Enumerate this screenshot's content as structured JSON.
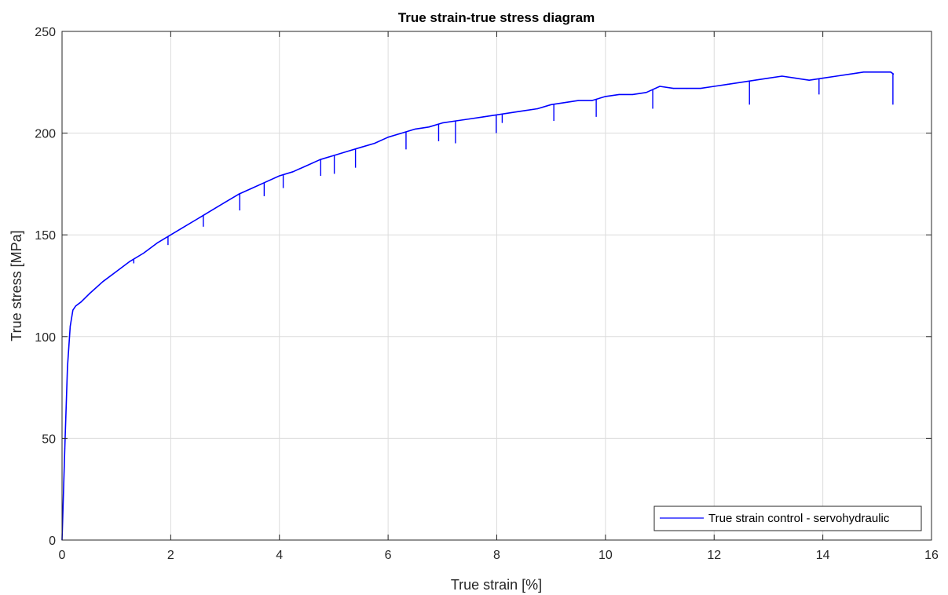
{
  "chart_data": {
    "type": "line",
    "title": "True strain-true stress diagram",
    "xlabel": "True strain [%]",
    "ylabel": "True stress [MPa]",
    "xlim": [
      0,
      16
    ],
    "ylim": [
      0,
      250
    ],
    "xticks": [
      0,
      2,
      4,
      6,
      8,
      10,
      12,
      14,
      16
    ],
    "yticks": [
      0,
      50,
      100,
      150,
      200,
      250
    ],
    "xtick_labels": [
      "0",
      "2",
      "4",
      "6",
      "8",
      "10",
      "12",
      "14",
      "16"
    ],
    "ytick_labels": [
      "0",
      "50",
      "100",
      "150",
      "200",
      "250"
    ],
    "grid": true,
    "legend_position": "bottom-right",
    "series": [
      {
        "name": "True strain control - servohydraulic",
        "color": "#0000ff",
        "x": [
          0,
          0.05,
          0.1,
          0.15,
          0.2,
          0.25,
          0.35,
          0.5,
          0.75,
          1.0,
          1.25,
          1.5,
          1.75,
          2.0,
          2.25,
          2.5,
          2.75,
          3.0,
          3.25,
          3.5,
          3.75,
          4.0,
          4.25,
          4.5,
          4.75,
          5.0,
          5.25,
          5.5,
          5.75,
          6.0,
          6.25,
          6.5,
          6.75,
          7.0,
          7.25,
          7.5,
          7.75,
          8.0,
          8.25,
          8.5,
          8.75,
          9.0,
          9.25,
          9.5,
          9.75,
          10.0,
          10.25,
          10.5,
          10.75,
          11.0,
          11.25,
          11.5,
          11.75,
          12.0,
          12.25,
          12.5,
          12.75,
          13.0,
          13.25,
          13.5,
          13.75,
          14.0,
          14.25,
          14.5,
          14.75,
          15.0,
          15.25,
          15.3
        ],
        "y": [
          0,
          45,
          85,
          105,
          113,
          115,
          117,
          121,
          127,
          132,
          137,
          141,
          146,
          150,
          154,
          158,
          162,
          166,
          170,
          173,
          176,
          179,
          181,
          184,
          187,
          189,
          191,
          193,
          195,
          198,
          200,
          202,
          203,
          205,
          206,
          207,
          208,
          209,
          210,
          211,
          212,
          214,
          215,
          216,
          216,
          218,
          219,
          219,
          220,
          223,
          222,
          222,
          222,
          223,
          224,
          225,
          226,
          227,
          228,
          227,
          226,
          227,
          228,
          229,
          230,
          230,
          230,
          229
        ]
      }
    ],
    "dips": [
      {
        "x": 1.32,
        "y": 136
      },
      {
        "x": 1.95,
        "y": 145
      },
      {
        "x": 2.6,
        "y": 154
      },
      {
        "x": 3.27,
        "y": 162
      },
      {
        "x": 3.72,
        "y": 169
      },
      {
        "x": 4.07,
        "y": 173
      },
      {
        "x": 4.76,
        "y": 179
      },
      {
        "x": 5.01,
        "y": 180
      },
      {
        "x": 5.4,
        "y": 183
      },
      {
        "x": 6.33,
        "y": 192
      },
      {
        "x": 6.93,
        "y": 196
      },
      {
        "x": 7.24,
        "y": 195
      },
      {
        "x": 7.99,
        "y": 200
      },
      {
        "x": 8.1,
        "y": 205
      },
      {
        "x": 9.05,
        "y": 206
      },
      {
        "x": 9.83,
        "y": 208
      },
      {
        "x": 10.87,
        "y": 212
      },
      {
        "x": 12.65,
        "y": 214
      },
      {
        "x": 13.93,
        "y": 219
      },
      {
        "x": 15.29,
        "y": 214
      }
    ]
  }
}
